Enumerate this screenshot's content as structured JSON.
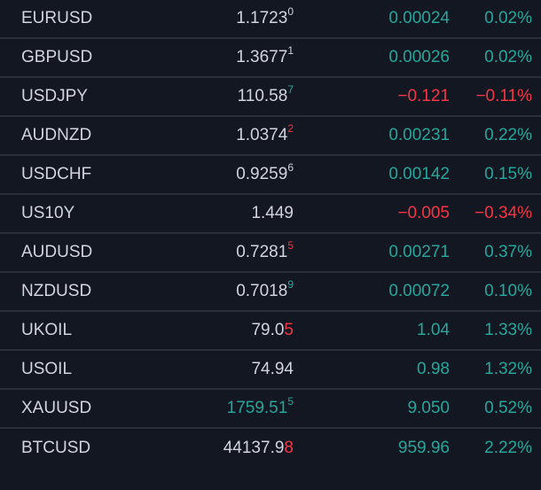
{
  "colors": {
    "background": "#131722",
    "text": "#d1d4dc",
    "up": "#26a69a",
    "down": "#f23645",
    "divider": "#2a2e39"
  },
  "rows": [
    {
      "symbol": "EURUSD",
      "price_main": "1.1723",
      "price_sup": "0",
      "price_color": "neutral",
      "sup_color": "neutral",
      "change": "0.00024",
      "percent": "0.02%",
      "dir": "up"
    },
    {
      "symbol": "GBPUSD",
      "price_main": "1.3677",
      "price_sup": "1",
      "price_color": "neutral",
      "sup_color": "neutral",
      "change": "0.00026",
      "percent": "0.02%",
      "dir": "up"
    },
    {
      "symbol": "USDJPY",
      "price_main": "110.58",
      "price_sup": "7",
      "price_color": "neutral",
      "sup_color": "up",
      "change": "−0.121",
      "percent": "−0.11%",
      "dir": "down"
    },
    {
      "symbol": "AUDNZD",
      "price_main": "1.0374",
      "price_sup": "2",
      "price_color": "neutral",
      "sup_color": "down",
      "change": "0.00231",
      "percent": "0.22%",
      "dir": "up"
    },
    {
      "symbol": "USDCHF",
      "price_main": "0.9259",
      "price_sup": "6",
      "price_color": "neutral",
      "sup_color": "neutral",
      "change": "0.00142",
      "percent": "0.15%",
      "dir": "up"
    },
    {
      "symbol": "US10Y",
      "price_main": "1.449",
      "price_sup": "",
      "price_color": "neutral",
      "sup_color": "neutral",
      "change": "−0.005",
      "percent": "−0.34%",
      "dir": "down"
    },
    {
      "symbol": "AUDUSD",
      "price_main": "0.7281",
      "price_sup": "5",
      "price_color": "neutral",
      "sup_color": "down",
      "change": "0.00271",
      "percent": "0.37%",
      "dir": "up"
    },
    {
      "symbol": "NZDUSD",
      "price_main": "0.7018",
      "price_sup": "9",
      "price_color": "neutral",
      "sup_color": "up",
      "change": "0.00072",
      "percent": "0.10%",
      "dir": "up"
    },
    {
      "symbol": "UKOIL",
      "price_main": "79.0",
      "price_sup": "5",
      "price_color": "neutral",
      "sup_color": "down",
      "sup_full": true,
      "change": "1.04",
      "percent": "1.33%",
      "dir": "up"
    },
    {
      "symbol": "USOIL",
      "price_main": "74.94",
      "price_sup": "",
      "price_color": "neutral",
      "sup_color": "neutral",
      "change": "0.98",
      "percent": "1.32%",
      "dir": "up"
    },
    {
      "symbol": "XAUUSD",
      "price_main": "1759.51",
      "price_sup": "5",
      "price_color": "up",
      "sup_color": "up",
      "change": "9.050",
      "percent": "0.52%",
      "dir": "up"
    },
    {
      "symbol": "BTCUSD",
      "price_main": "44137.9",
      "price_sup": "8",
      "price_color": "neutral",
      "sup_color": "down",
      "sup_full": true,
      "change": "959.96",
      "percent": "2.22%",
      "dir": "up"
    }
  ]
}
